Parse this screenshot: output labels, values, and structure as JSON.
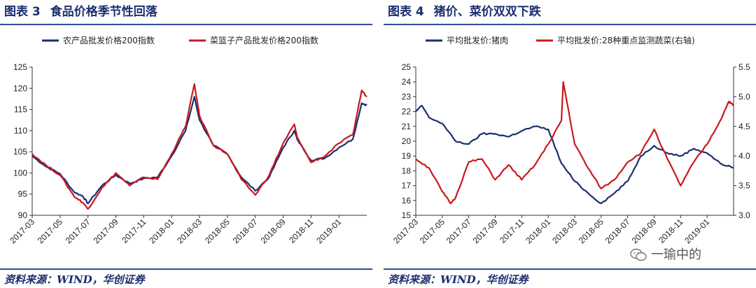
{
  "panels": [
    {
      "fig_label": "图表 3",
      "title": "食品价格季节性回落",
      "source": "资料来源：WIND，华创证券"
    },
    {
      "fig_label": "图表 4",
      "title": "猪价、菜价双双下跌",
      "source": "资料来源：WIND，华创证券"
    }
  ],
  "watermark": "一瑜中的",
  "colors": {
    "navy": "#1a2f6e",
    "red": "#c8191e",
    "rule": "#2f4f9a"
  },
  "chart_data": [
    {
      "type": "line",
      "title": "食品价格季节性回落",
      "ylim": [
        90,
        125
      ],
      "yticks": [
        90,
        95,
        100,
        105,
        110,
        115,
        120,
        125
      ],
      "x_range": [
        "2017-03",
        "2019-03"
      ],
      "x_ticks": [
        "2017-03",
        "2017-05",
        "2017-07",
        "2017-09",
        "2017-11",
        "2018-01",
        "2018-03",
        "2018-05",
        "2018-07",
        "2018-09",
        "2018-11",
        "2019-01"
      ],
      "legend_position": "top",
      "series": [
        {
          "name": "农产品批发价格200指数",
          "color": "#1a2f6e",
          "points": [
            [
              "2017-03",
              104
            ],
            [
              "2017-04",
              101.5
            ],
            [
              "2017-05",
              99.8
            ],
            [
              "2017-06",
              95.5
            ],
            [
              "2017-06-20",
              94.5
            ],
            [
              "2017-07",
              92.8
            ],
            [
              "2017-08",
              97
            ],
            [
              "2017-09",
              99.5
            ],
            [
              "2017-10",
              97.5
            ],
            [
              "2017-11",
              98.7
            ],
            [
              "2017-12",
              99
            ],
            [
              "2018-01",
              104
            ],
            [
              "2018-02",
              110
            ],
            [
              "2018-02-20",
              118
            ],
            [
              "2018-03",
              112.5
            ],
            [
              "2018-04",
              106.5
            ],
            [
              "2018-05",
              104.5
            ],
            [
              "2018-06",
              99
            ],
            [
              "2018-07",
              95.8
            ],
            [
              "2018-08",
              99
            ],
            [
              "2018-09",
              106
            ],
            [
              "2018-09-25",
              110
            ],
            [
              "2018-10",
              108
            ],
            [
              "2018-11",
              103
            ],
            [
              "2018-12",
              103.5
            ],
            [
              "2019-01",
              106
            ],
            [
              "2019-02",
              108
            ],
            [
              "2019-02-20",
              116.5
            ],
            [
              "2019-03",
              116
            ]
          ]
        },
        {
          "name": "菜篮子产品批发价格200指数",
          "color": "#c8191e",
          "points": [
            [
              "2017-03",
              104.5
            ],
            [
              "2017-04",
              101.8
            ],
            [
              "2017-05",
              99.5
            ],
            [
              "2017-06",
              94.5
            ],
            [
              "2017-06-20",
              93
            ],
            [
              "2017-07",
              91.5
            ],
            [
              "2017-08",
              96.5
            ],
            [
              "2017-09",
              100
            ],
            [
              "2017-10",
              97
            ],
            [
              "2017-11",
              99
            ],
            [
              "2017-12",
              98.5
            ],
            [
              "2018-01",
              104.5
            ],
            [
              "2018-02",
              111
            ],
            [
              "2018-02-20",
              121
            ],
            [
              "2018-03",
              113.5
            ],
            [
              "2018-04",
              106.5
            ],
            [
              "2018-05",
              104.5
            ],
            [
              "2018-06",
              98.5
            ],
            [
              "2018-07",
              94.8
            ],
            [
              "2018-08",
              99.5
            ],
            [
              "2018-09",
              107
            ],
            [
              "2018-09-25",
              111.5
            ],
            [
              "2018-10",
              108.5
            ],
            [
              "2018-11",
              102.5
            ],
            [
              "2018-12",
              104
            ],
            [
              "2019-01",
              107
            ],
            [
              "2019-02",
              109
            ],
            [
              "2019-02-20",
              119.5
            ],
            [
              "2019-03",
              118
            ]
          ]
        }
      ]
    },
    {
      "type": "line",
      "title": "猪价、菜价双双下跌",
      "ylim": [
        15,
        25
      ],
      "yticks": [
        15,
        16,
        17,
        18,
        19,
        20,
        21,
        22,
        23,
        24,
        25
      ],
      "y2lim": [
        3.0,
        5.5
      ],
      "y2ticks": [
        "3.0",
        "3.5",
        "4.0",
        "4.5",
        "5.0",
        "5.5"
      ],
      "x_range": [
        "2017-03",
        "2019-03"
      ],
      "x_ticks": [
        "2017-03",
        "2017-05",
        "2017-07",
        "2017-09",
        "2017-11",
        "2018-01",
        "2018-03",
        "2018-05",
        "2018-07",
        "2018-09",
        "2018-11",
        "2019-01"
      ],
      "legend_position": "top",
      "series": [
        {
          "name": "平均批发价:猪肉",
          "color": "#1a2f6e",
          "axis": "left",
          "points": [
            [
              "2017-03",
              22
            ],
            [
              "2017-03-15",
              22.4
            ],
            [
              "2017-04",
              21.6
            ],
            [
              "2017-05",
              21.2
            ],
            [
              "2017-06",
              20
            ],
            [
              "2017-07",
              19.8
            ],
            [
              "2017-08",
              20.5
            ],
            [
              "2017-09",
              20.5
            ],
            [
              "2017-10",
              20.3
            ],
            [
              "2017-11",
              20.7
            ],
            [
              "2017-12",
              21
            ],
            [
              "2018-01",
              20.8
            ],
            [
              "2018-02",
              18.5
            ],
            [
              "2018-03",
              17.3
            ],
            [
              "2018-04",
              16.5
            ],
            [
              "2018-05",
              15.8
            ],
            [
              "2018-06",
              16.5
            ],
            [
              "2018-07",
              17.3
            ],
            [
              "2018-08",
              19
            ],
            [
              "2018-09",
              19.7
            ],
            [
              "2018-10",
              19.2
            ],
            [
              "2018-11",
              19
            ],
            [
              "2018-12",
              19.5
            ],
            [
              "2019-01",
              19.2
            ],
            [
              "2019-02",
              18.5
            ],
            [
              "2019-03",
              18.2
            ]
          ]
        },
        {
          "name": "平均批发价:28种重点监测蔬菜(右轴)",
          "color": "#c8191e",
          "axis": "right",
          "points": [
            [
              "2017-03",
              3.95
            ],
            [
              "2017-04",
              3.8
            ],
            [
              "2017-05",
              3.4
            ],
            [
              "2017-05-20",
              3.2
            ],
            [
              "2017-06",
              3.3
            ],
            [
              "2017-07",
              3.9
            ],
            [
              "2017-08",
              3.95
            ],
            [
              "2017-09",
              3.6
            ],
            [
              "2017-10",
              3.85
            ],
            [
              "2017-11",
              3.6
            ],
            [
              "2017-12",
              3.85
            ],
            [
              "2018-01",
              4.2
            ],
            [
              "2018-02",
              4.6
            ],
            [
              "2018-02-05",
              5.25
            ],
            [
              "2018-03",
              4.2
            ],
            [
              "2018-04",
              3.8
            ],
            [
              "2018-05",
              3.45
            ],
            [
              "2018-06",
              3.6
            ],
            [
              "2018-07",
              3.9
            ],
            [
              "2018-08",
              4.05
            ],
            [
              "2018-09",
              4.45
            ],
            [
              "2018-10",
              3.95
            ],
            [
              "2018-11",
              3.5
            ],
            [
              "2018-12",
              3.9
            ],
            [
              "2019-01",
              4.2
            ],
            [
              "2019-02",
              4.6
            ],
            [
              "2019-02-20",
              4.92
            ],
            [
              "2019-03",
              4.85
            ]
          ]
        }
      ]
    }
  ]
}
